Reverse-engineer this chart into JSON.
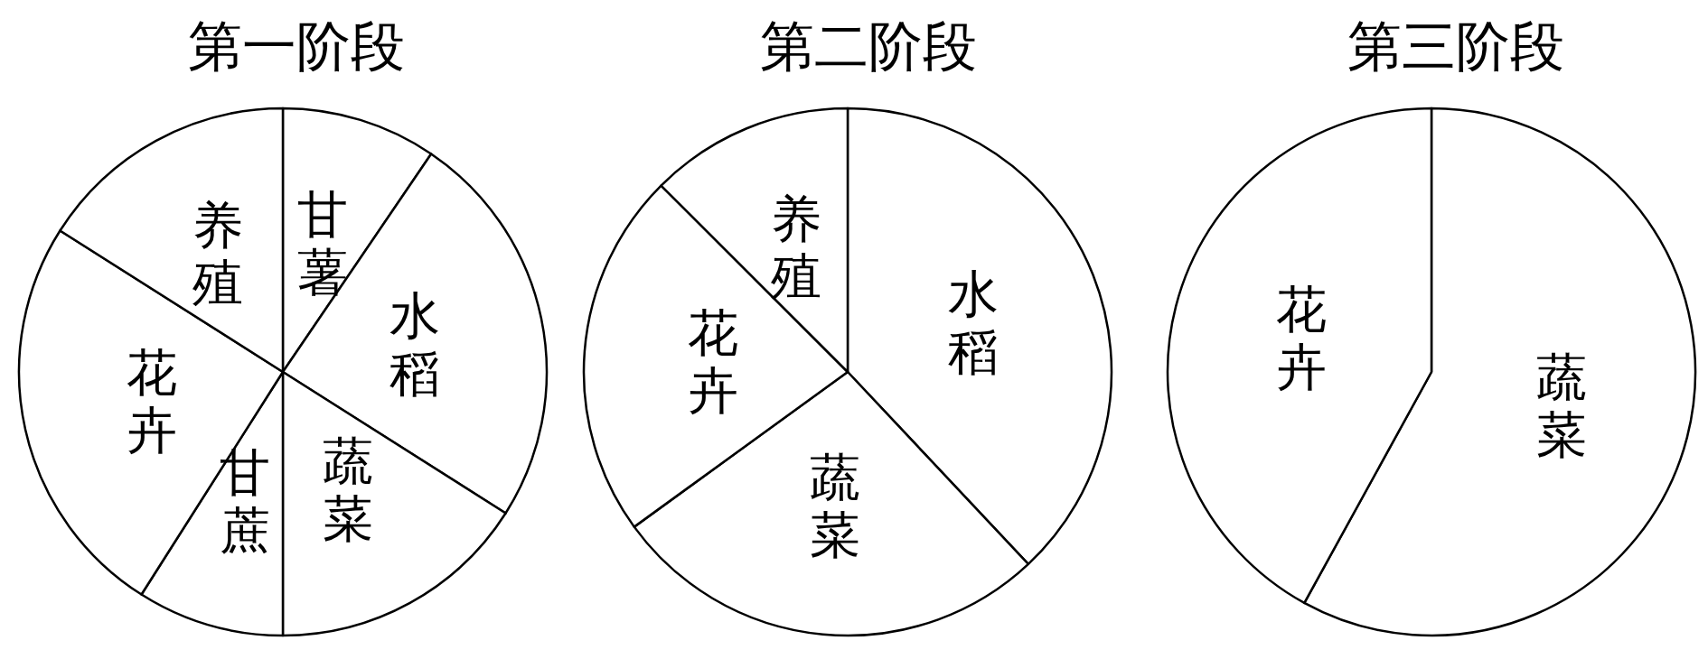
{
  "chart_data": [
    {
      "type": "pie",
      "title": "第一阶段",
      "categories": [
        "甘薯",
        "水稻",
        "蔬菜",
        "甘蔗",
        "花卉",
        "养殖"
      ],
      "values": [
        9.5,
        24.5,
        16,
        9,
        25,
        16
      ],
      "colors": [
        "#ffffff",
        "#ffffff",
        "#ffffff",
        "#ffffff",
        "#ffffff",
        "#ffffff"
      ]
    },
    {
      "type": "pie",
      "title": "第二阶段",
      "categories": [
        "水稻",
        "蔬菜",
        "花卉",
        "养殖"
      ],
      "values": [
        38,
        27,
        22.5,
        12.5
      ],
      "colors": [
        "#ffffff",
        "#ffffff",
        "#ffffff",
        "#ffffff"
      ]
    },
    {
      "type": "pie",
      "title": "第三阶段",
      "categories": [
        "蔬菜",
        "花卉"
      ],
      "values": [
        58,
        42
      ],
      "colors": [
        "#ffffff",
        "#ffffff"
      ]
    }
  ]
}
